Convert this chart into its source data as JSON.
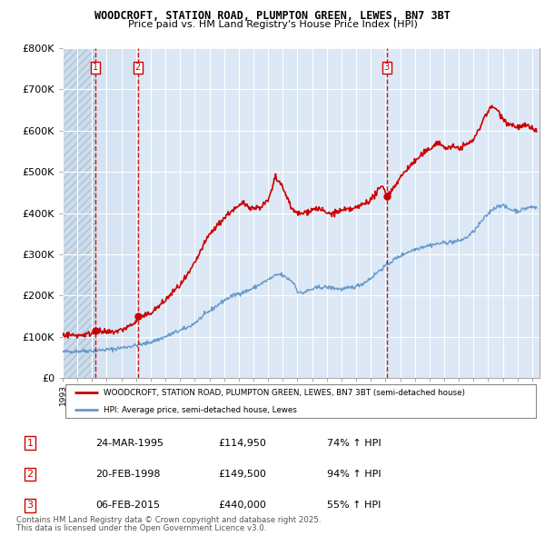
{
  "title1": "WOODCROFT, STATION ROAD, PLUMPTON GREEN, LEWES, BN7 3BT",
  "title2": "Price paid vs. HM Land Registry's House Price Index (HPI)",
  "ylim": [
    0,
    800000
  ],
  "yticks": [
    0,
    100000,
    200000,
    300000,
    400000,
    500000,
    600000,
    700000,
    800000
  ],
  "ytick_labels": [
    "£0",
    "£100K",
    "£200K",
    "£300K",
    "£400K",
    "£500K",
    "£600K",
    "£700K",
    "£800K"
  ],
  "xlim_start": 1993.0,
  "xlim_end": 2025.5,
  "transactions": [
    {
      "num": 1,
      "year": 1995.23,
      "price": 114950
    },
    {
      "num": 2,
      "year": 1998.13,
      "price": 149500
    },
    {
      "num": 3,
      "year": 2015.09,
      "price": 440000
    }
  ],
  "legend_red": "WOODCROFT, STATION ROAD, PLUMPTON GREEN, LEWES, BN7 3BT (semi-detached house)",
  "legend_blue": "HPI: Average price, semi-detached house, Lewes",
  "footnote1": "Contains HM Land Registry data © Crown copyright and database right 2025.",
  "footnote2": "This data is licensed under the Open Government Licence v3.0.",
  "table": [
    {
      "num": "1",
      "date": "24-MAR-1995",
      "price": "£114,950",
      "hpi": "74% ↑ HPI"
    },
    {
      "num": "2",
      "date": "20-FEB-1998",
      "price": "£149,500",
      "hpi": "94% ↑ HPI"
    },
    {
      "num": "3",
      "date": "06-FEB-2015",
      "price": "£440,000",
      "hpi": "55% ↑ HPI"
    }
  ],
  "red_color": "#cc0000",
  "blue_color": "#6699cc",
  "hatch_bg_color": "#e8eef5",
  "chart_bg_color": "#f0f4f8"
}
